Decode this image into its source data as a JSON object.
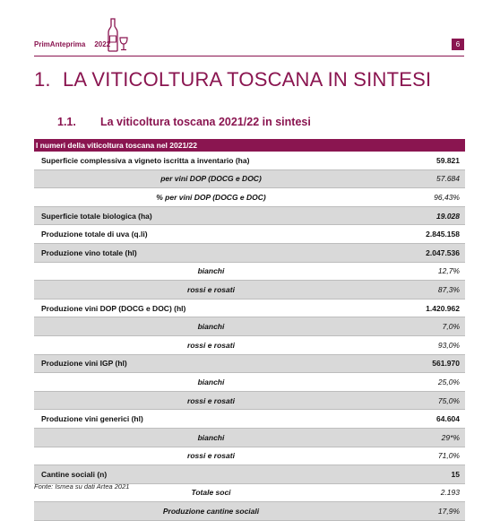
{
  "header": {
    "brand": "PrimAnteprima",
    "year": "2022",
    "page_number": "6",
    "accent_color": "#8a1550",
    "icon": "wine-bottle-glass-icon"
  },
  "section": {
    "number": "1.",
    "title": "LA VITICOLTURA TOSCANA IN SINTESI"
  },
  "subsection": {
    "number": "1.1.",
    "title": "La viticoltura toscana 2021/22 in sintesi"
  },
  "table": {
    "title": "I numeri della viticoltura toscana nel 2021/22",
    "rows": [
      {
        "label": "Superficie complessiva a vigneto iscritta a inventario (ha)",
        "value": "59.821",
        "type": "main",
        "shade": false
      },
      {
        "label": "per vini DOP (DOCG e DOC)",
        "value": "57.684",
        "type": "sub",
        "shade": true
      },
      {
        "label": "% per vini DOP (DOCG e DOC)",
        "value": "96,43%",
        "type": "sub",
        "shade": false
      },
      {
        "label": "Superficie totale biologica (ha)",
        "value": "19.028",
        "type": "main",
        "shade": true,
        "value_italic": true
      },
      {
        "label": "Produzione totale di uva (q.li)",
        "value": "2.845.158",
        "type": "main",
        "shade": false
      },
      {
        "label": "Produzione vino totale (hl)",
        "value": "2.047.536",
        "type": "main",
        "shade": true
      },
      {
        "label": "bianchi",
        "value": "12,7%",
        "type": "sub",
        "shade": false
      },
      {
        "label": "rossi e rosati",
        "value": "87,3%",
        "type": "sub",
        "shade": true
      },
      {
        "label": "Produzione vini DOP (DOCG e DOC) (hl)",
        "value": "1.420.962",
        "type": "main",
        "shade": false
      },
      {
        "label": "bianchi",
        "value": "7,0%",
        "type": "sub",
        "shade": true
      },
      {
        "label": "rossi e rosati",
        "value": "93,0%",
        "type": "sub",
        "shade": false
      },
      {
        "label": "Produzione vini IGP (hl)",
        "value": "561.970",
        "type": "main",
        "shade": true
      },
      {
        "label": "bianchi",
        "value": "25,0%",
        "type": "sub",
        "shade": false
      },
      {
        "label": "rossi e rosati",
        "value": "75,0%",
        "type": "sub",
        "shade": true
      },
      {
        "label": "Produzione vini generici (hl)",
        "value": "64.604",
        "type": "main",
        "shade": false
      },
      {
        "label": "bianchi",
        "value": "29*%",
        "type": "sub",
        "shade": true
      },
      {
        "label": "rossi e rosati",
        "value": "71,0%",
        "type": "sub",
        "shade": false
      },
      {
        "label": "Cantine sociali (n)",
        "value": "15",
        "type": "main",
        "shade": true
      },
      {
        "label": "Totale soci",
        "value": "2.193",
        "type": "sub",
        "shade": false
      },
      {
        "label": "Produzione cantine sociali",
        "value": "17,9%",
        "type": "sub",
        "shade": true
      }
    ]
  },
  "source": "Fonte: Ismea su dati Artea 2021"
}
